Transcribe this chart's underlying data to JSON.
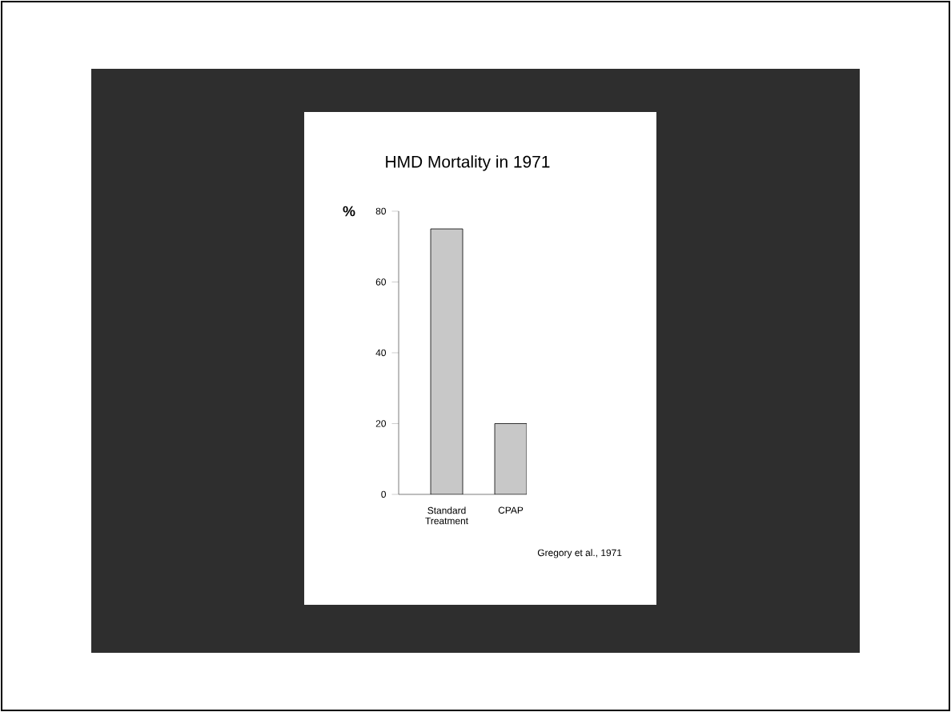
{
  "chart_data": {
    "type": "bar",
    "title": "HMD Mortality in 1971",
    "ylabel": "%",
    "categories": [
      "Standard Treatment",
      "CPAP"
    ],
    "values": [
      75,
      20
    ],
    "color": "#c8c8c8",
    "ylim": [
      0,
      80
    ],
    "yticks": [
      0,
      20,
      40,
      60,
      80
    ],
    "annotations": [
      "Gregory et al., 1971"
    ]
  }
}
